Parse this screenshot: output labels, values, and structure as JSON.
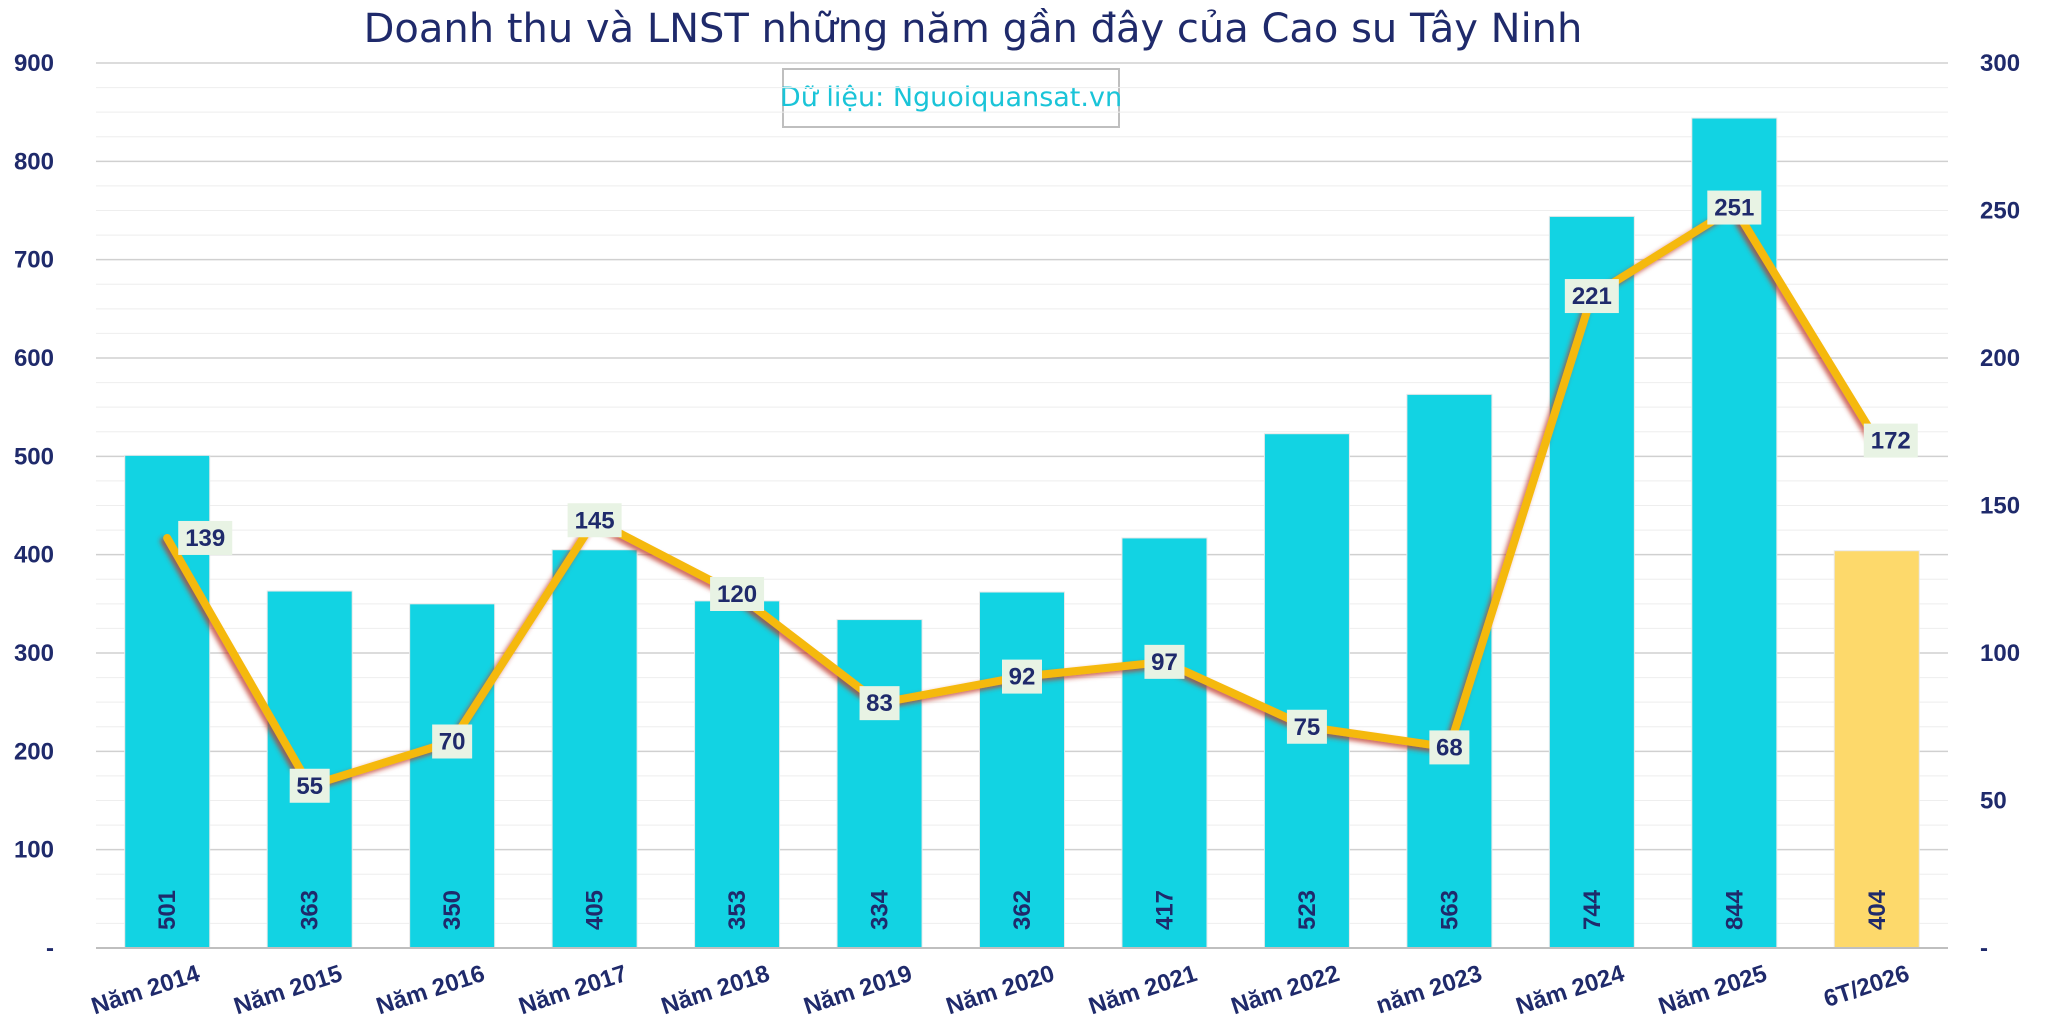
{
  "chart_data": {
    "type": "bar",
    "title": "Doanh thu và LNST những năm gần đây của Cao su Tây Ninh",
    "source_note": "Dữ liệu: Nguoiquansat.vn",
    "categories": [
      "Năm 2014",
      "Năm 2015",
      "Năm 2016",
      "Năm 2017",
      "Năm 2018",
      "Năm 2019",
      "Năm 2020",
      "Năm 2021",
      "Năm 2022",
      "năm 2023",
      "Năm 2024",
      "Năm 2025",
      "6T/2026"
    ],
    "series": [
      {
        "type": "bar",
        "axis": "left",
        "values": [
          501,
          363,
          350,
          405,
          353,
          334,
          362,
          417,
          523,
          563,
          744,
          844,
          404
        ],
        "colors": [
          "#12d3e3",
          "#12d3e3",
          "#12d3e3",
          "#12d3e3",
          "#12d3e3",
          "#12d3e3",
          "#12d3e3",
          "#12d3e3",
          "#12d3e3",
          "#12d3e3",
          "#12d3e3",
          "#12d3e3",
          "#fdd96b"
        ]
      },
      {
        "type": "line",
        "axis": "right",
        "values": [
          139,
          55,
          70,
          145,
          120,
          83,
          92,
          97,
          75,
          68,
          221,
          251,
          172
        ],
        "color": "#f5b90f"
      }
    ],
    "left_axis": {
      "ylim": [
        0,
        900
      ],
      "ticks": [
        "-",
        "100",
        "200",
        "300",
        "400",
        "500",
        "600",
        "700",
        "800",
        "900"
      ]
    },
    "right_axis": {
      "ylim": [
        0,
        300
      ],
      "ticks": [
        "-",
        "50",
        "100",
        "150",
        "200",
        "250",
        "300"
      ]
    },
    "grid": true
  }
}
